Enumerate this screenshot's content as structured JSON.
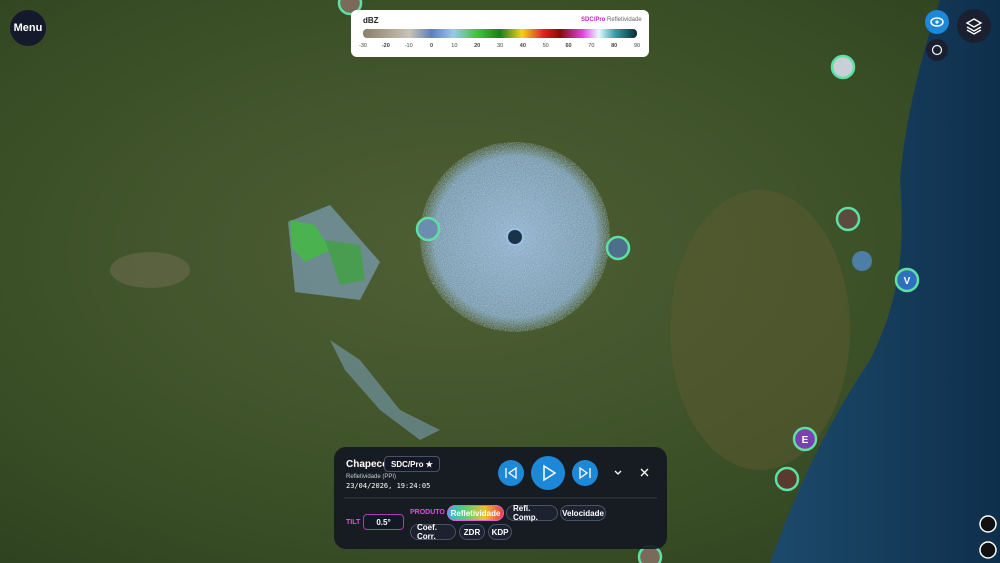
{
  "menu": "Menu",
  "legend": {
    "unit": "dBZ",
    "source": "SDC/Pro",
    "product": "Refletividade",
    "ticks": [
      -30,
      -20,
      -10,
      0,
      10,
      20,
      30,
      40,
      50,
      60,
      70,
      80,
      90
    ]
  },
  "markers": [
    "V",
    "E"
  ],
  "panel": {
    "station": "Chapecó",
    "source_select": "SDC/Pro ★",
    "product_mode": "Refletividade (PPI)",
    "timestamp": "23/04/2026, 19:24:05",
    "tilt_label": "TILT",
    "tilt_select": "0.5°",
    "product_label": "PRODUTO",
    "products": [
      "Refletividade",
      "Refl. Comp.",
      "Velocidade",
      "Coef. Corr.",
      "ZDR",
      "KDP"
    ]
  }
}
